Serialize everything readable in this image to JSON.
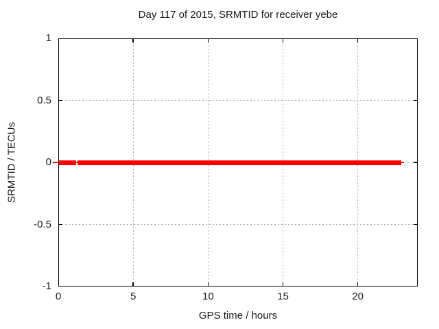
{
  "colors": {
    "background": "#ffffff",
    "text": "#1a1a1a",
    "axis": "#000000",
    "grid": "#a9a9a9",
    "series": "#ff0000"
  },
  "chart_data": {
    "type": "line",
    "title": "Day 117 of 2015, SRMTID for receiver yebe",
    "xlabel": "GPS time / hours",
    "ylabel": "SRMTID / TECUs",
    "xlim": [
      0,
      24
    ],
    "ylim": [
      -1,
      1
    ],
    "x_ticks": [
      0,
      5,
      10,
      15,
      20
    ],
    "x_tick_labels": [
      "0",
      "5",
      "10",
      "15",
      "20"
    ],
    "y_ticks": [
      1,
      0.5,
      0,
      -0.5,
      -1
    ],
    "y_tick_labels": [
      "1",
      "0.5",
      "0",
      "-0.5",
      "-1"
    ],
    "grid": true,
    "grid_style": "dashed",
    "legend": "none",
    "series": [
      {
        "name": "SRMTID",
        "color": "#ff0000",
        "style": "thick band of dense point markers over a thin connecting line",
        "y_value": 0,
        "x_start": 0,
        "x_end": 22.9,
        "gaps": [
          [
            1.19,
            1.28
          ]
        ],
        "thin_line_extent": [
          -0.37,
          23.08
        ]
      }
    ]
  }
}
